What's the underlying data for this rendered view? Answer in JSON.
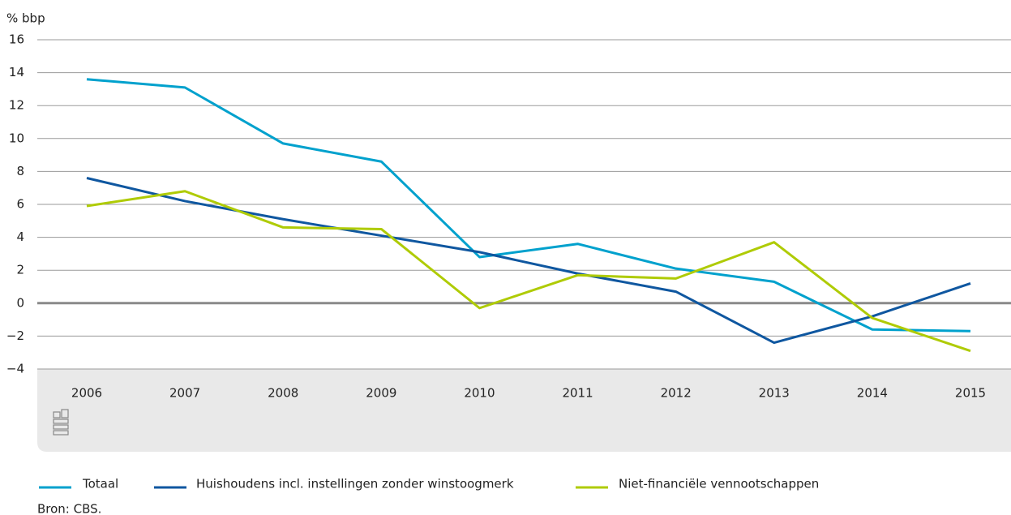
{
  "chart_data": {
    "type": "line",
    "y_label": "% bbp",
    "categories": [
      "2006",
      "2007",
      "2008",
      "2009",
      "2010",
      "2011",
      "2012",
      "2013",
      "2014",
      "2015"
    ],
    "series": [
      {
        "name": "Totaal",
        "color": "#00a1cd",
        "values": [
          13.6,
          13.1,
          9.7,
          8.6,
          2.8,
          3.6,
          2.1,
          1.3,
          -1.6,
          -1.7
        ]
      },
      {
        "name": "Huishoudens incl. instellingen zonder winstoogmerk",
        "color": "#0f57a0",
        "values": [
          7.6,
          6.2,
          5.1,
          4.1,
          3.1,
          1.8,
          0.7,
          -2.4,
          -0.8,
          1.2
        ]
      },
      {
        "name": "Niet-financiële vennootschappen",
        "color": "#afcb05",
        "values": [
          5.9,
          6.8,
          4.6,
          4.5,
          -0.3,
          1.7,
          1.5,
          3.7,
          -0.9,
          -2.9
        ]
      }
    ],
    "ylim": [
      -4,
      16
    ],
    "yticks": [
      {
        "value": -4,
        "label": "−4"
      },
      {
        "value": -2,
        "label": "−2"
      },
      0,
      2,
      4,
      6,
      8,
      10,
      12,
      14,
      16
    ],
    "grid": true,
    "source": "Bron: CBS."
  }
}
